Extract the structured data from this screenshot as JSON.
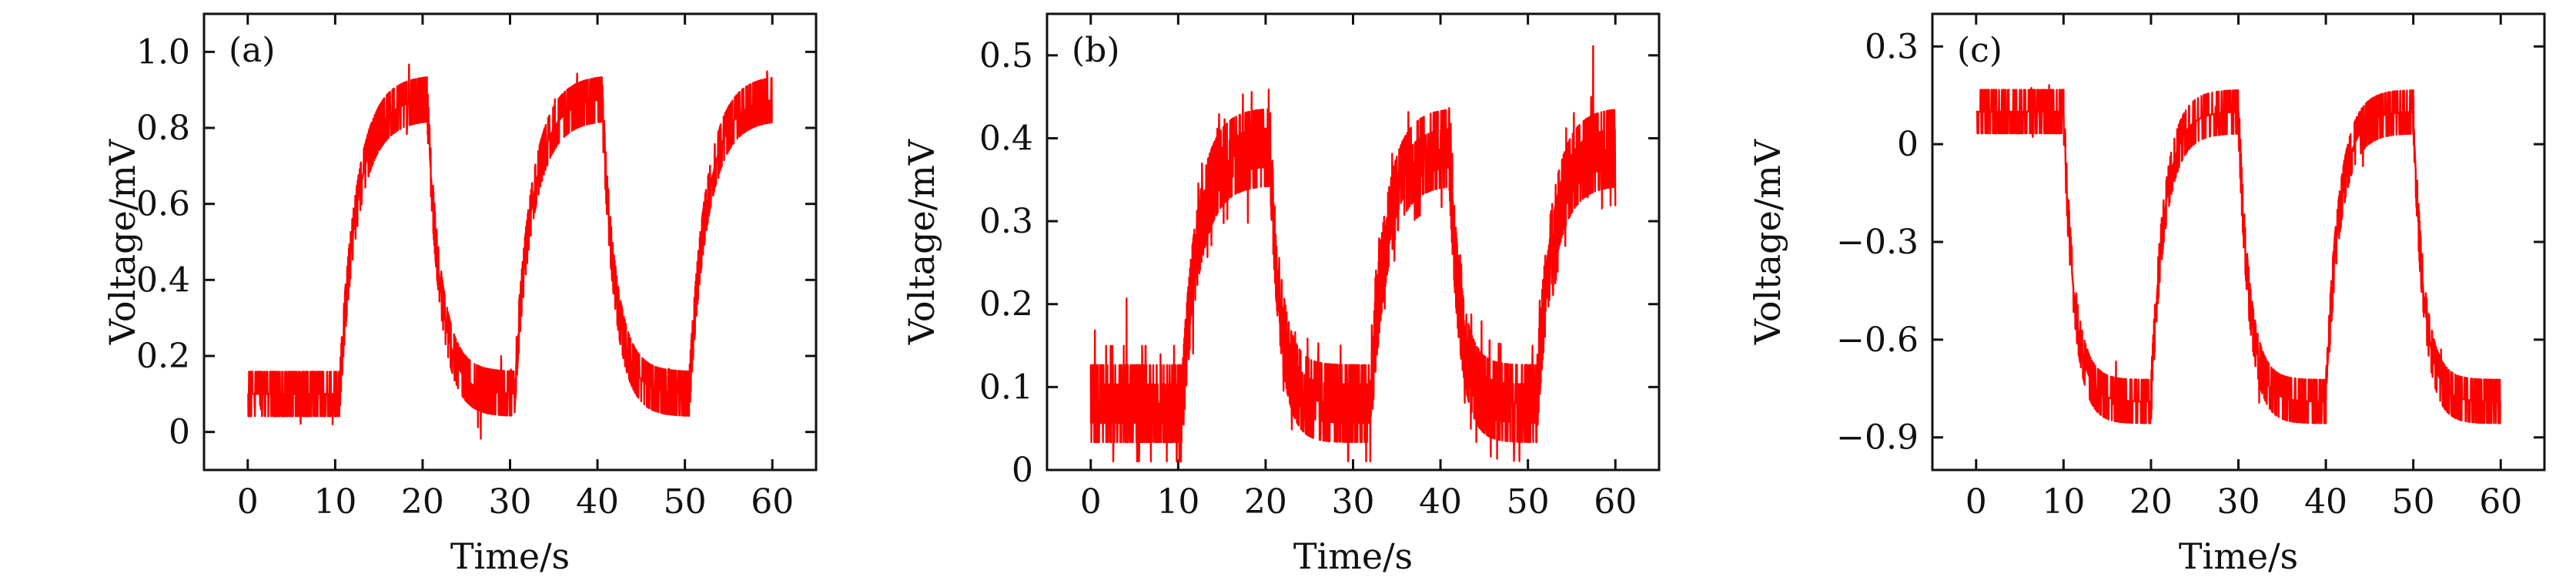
{
  "colors": {
    "trace": "#ff0000",
    "axis": "#111111",
    "background": "#ffffff"
  },
  "chart_data": [
    {
      "type": "line",
      "panel_label": "(a)",
      "xlabel": "Time/s",
      "ylabel": "Voltage/mV",
      "xlim": [
        -5,
        65
      ],
      "ylim": [
        -0.1,
        1.1
      ],
      "xticks": [
        0,
        10,
        20,
        30,
        40,
        50,
        60
      ],
      "xtick_labels": [
        "0",
        "10",
        "20",
        "30",
        "40",
        "50",
        "60"
      ],
      "yticks": [
        0,
        0.2,
        0.4,
        0.6,
        0.8,
        1.0
      ],
      "ytick_labels": [
        "0",
        "0.2",
        "0.4",
        "0.6",
        "0.8",
        "1.0"
      ],
      "grid": false,
      "series": [
        {
          "low_level": 0.1,
          "high_level": 0.88,
          "noise_amplitude": 0.055,
          "segments": [
            {
              "x_start": 0,
              "x_end": 10.5,
              "level": "low"
            },
            {
              "x_start": 10.5,
              "x_end": 20.5,
              "level": "high"
            },
            {
              "x_start": 20.5,
              "x_end": 30.5,
              "level": "low"
            },
            {
              "x_start": 30.5,
              "x_end": 40.5,
              "level": "high"
            },
            {
              "x_start": 40.5,
              "x_end": 50.5,
              "level": "low"
            },
            {
              "x_start": 50.5,
              "x_end": 60,
              "level": "high"
            }
          ],
          "rise_time_constant": 2.0,
          "fall_time_constant": 1.5
        }
      ]
    },
    {
      "type": "line",
      "panel_label": "(b)",
      "xlabel": "Time/s",
      "ylabel": "Voltage/mV",
      "xlim": [
        -5,
        65
      ],
      "ylim": [
        0,
        0.55
      ],
      "xticks": [
        0,
        10,
        20,
        30,
        40,
        50,
        60
      ],
      "xtick_labels": [
        "0",
        "10",
        "20",
        "30",
        "40",
        "50",
        "60"
      ],
      "yticks": [
        0,
        0.1,
        0.2,
        0.3,
        0.4,
        0.5
      ],
      "ytick_labels": [
        "0",
        "0.1",
        "0.2",
        "0.3",
        "0.4",
        "0.5"
      ],
      "grid": false,
      "series": [
        {
          "low_level": 0.08,
          "high_level": 0.39,
          "noise_amplitude": 0.06,
          "segments": [
            {
              "x_start": 0,
              "x_end": 10.5,
              "level": "low"
            },
            {
              "x_start": 10.5,
              "x_end": 20.5,
              "level": "high"
            },
            {
              "x_start": 20.5,
              "x_end": 32,
              "level": "low"
            },
            {
              "x_start": 32,
              "x_end": 41,
              "level": "high"
            },
            {
              "x_start": 41,
              "x_end": 51,
              "level": "low"
            },
            {
              "x_start": 51,
              "x_end": 60,
              "level": "high"
            }
          ],
          "rise_time_constant": 1.8,
          "fall_time_constant": 1.2
        }
      ]
    },
    {
      "type": "line",
      "panel_label": "(c)",
      "xlabel": "Time/s",
      "ylabel": "Voltage/mV",
      "xlim": [
        -5,
        65
      ],
      "ylim": [
        -1.0,
        0.4
      ],
      "xticks": [
        0,
        10,
        20,
        30,
        40,
        50,
        60
      ],
      "xtick_labels": [
        "0",
        "10",
        "20",
        "30",
        "40",
        "50",
        "60"
      ],
      "yticks": [
        0.3,
        0,
        -0.3,
        -0.6,
        -0.9
      ],
      "ytick_labels": [
        "0.3",
        "0",
        "−0.3",
        "−0.6",
        "−0.9"
      ],
      "grid": false,
      "series": [
        {
          "low_level": -0.79,
          "high_level": 0.1,
          "noise_amplitude": 0.055,
          "segments": [
            {
              "x_start": 0,
              "x_end": 10,
              "level": "high"
            },
            {
              "x_start": 10,
              "x_end": 20,
              "level": "low"
            },
            {
              "x_start": 20,
              "x_end": 30,
              "level": "high"
            },
            {
              "x_start": 30,
              "x_end": 40,
              "level": "low"
            },
            {
              "x_start": 40,
              "x_end": 50,
              "level": "high"
            },
            {
              "x_start": 50,
              "x_end": 60,
              "level": "low"
            }
          ],
          "rise_time_constant": 1.5,
          "fall_time_constant": 1.2
        }
      ]
    }
  ]
}
